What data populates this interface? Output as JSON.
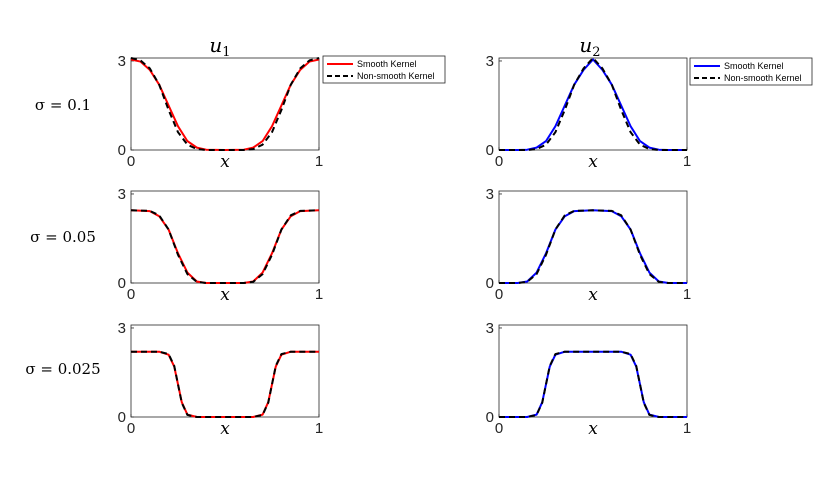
{
  "colors": {
    "u1_smooth": "#ff0000",
    "u2_smooth": "#0000ff",
    "non_smooth": "#000000",
    "axes": "#262626",
    "background": "#ffffff"
  },
  "legend": {
    "smooth_label": "Smooth Kernel",
    "nonsmooth_label": "Non-smooth Kernel"
  },
  "column_titles": {
    "u1": "u",
    "u1_sub": "1",
    "u2": "u",
    "u2_sub": "2"
  },
  "row_labels": [
    "σ = 0.1",
    "σ = 0.05",
    "σ = 0.025"
  ],
  "xlabel": "x",
  "chart_data": [
    {
      "type": "line",
      "component": "u_1",
      "sigma": 0.1,
      "xlim": [
        0,
        1
      ],
      "ylim": [
        0,
        3.1
      ],
      "xticks": [
        "0",
        "1"
      ],
      "yticks": [
        "0",
        "3"
      ],
      "series": [
        {
          "name": "Smooth Kernel",
          "x": [
            0,
            0.05,
            0.1,
            0.15,
            0.2,
            0.25,
            0.3,
            0.35,
            0.4,
            0.5,
            0.6,
            0.65,
            0.7,
            0.75,
            0.8,
            0.85,
            0.9,
            0.95,
            1
          ],
          "y": [
            3.05,
            2.98,
            2.7,
            2.2,
            1.5,
            0.8,
            0.3,
            0.08,
            0.01,
            0,
            0.01,
            0.08,
            0.3,
            0.8,
            1.5,
            2.2,
            2.7,
            2.98,
            3.05
          ]
        },
        {
          "name": "Non-smooth Kernel",
          "x": [
            0,
            0.05,
            0.1,
            0.15,
            0.2,
            0.25,
            0.3,
            0.35,
            0.4,
            0.5,
            0.6,
            0.65,
            0.7,
            0.75,
            0.8,
            0.85,
            0.9,
            0.95,
            1
          ],
          "y": [
            3.1,
            3.02,
            2.75,
            2.2,
            1.35,
            0.6,
            0.18,
            0.03,
            0,
            0,
            0,
            0.03,
            0.18,
            0.6,
            1.35,
            2.2,
            2.75,
            3.02,
            3.1
          ]
        }
      ]
    },
    {
      "type": "line",
      "component": "u_2",
      "sigma": 0.1,
      "xlim": [
        0,
        1
      ],
      "ylim": [
        0,
        3.1
      ],
      "xticks": [
        "0",
        "1"
      ],
      "yticks": [
        "0",
        "3"
      ],
      "series": [
        {
          "name": "Smooth Kernel",
          "x": [
            0,
            0.1,
            0.15,
            0.2,
            0.25,
            0.3,
            0.35,
            0.4,
            0.45,
            0.5,
            0.55,
            0.6,
            0.65,
            0.7,
            0.75,
            0.8,
            0.85,
            0.9,
            1
          ],
          "y": [
            0,
            0,
            0.01,
            0.08,
            0.3,
            0.8,
            1.5,
            2.2,
            2.7,
            3.05,
            2.7,
            2.2,
            1.5,
            0.8,
            0.3,
            0.08,
            0.01,
            0,
            0
          ]
        },
        {
          "name": "Non-smooth Kernel",
          "x": [
            0,
            0.1,
            0.15,
            0.2,
            0.25,
            0.3,
            0.35,
            0.4,
            0.45,
            0.5,
            0.55,
            0.6,
            0.65,
            0.7,
            0.75,
            0.8,
            0.85,
            0.9,
            1
          ],
          "y": [
            0,
            0,
            0,
            0.03,
            0.18,
            0.6,
            1.35,
            2.2,
            2.75,
            3.1,
            2.75,
            2.2,
            1.35,
            0.6,
            0.18,
            0.03,
            0,
            0,
            0
          ]
        }
      ]
    },
    {
      "type": "line",
      "component": "u_1",
      "sigma": 0.05,
      "xlim": [
        0,
        1
      ],
      "ylim": [
        0,
        3.1
      ],
      "xticks": [
        "0",
        "1"
      ],
      "yticks": [
        "0",
        "3"
      ],
      "series": [
        {
          "name": "Smooth Kernel",
          "x": [
            0,
            0.1,
            0.15,
            0.2,
            0.25,
            0.3,
            0.35,
            0.4,
            0.5,
            0.6,
            0.65,
            0.7,
            0.75,
            0.8,
            0.85,
            0.9,
            1
          ],
          "y": [
            2.45,
            2.42,
            2.25,
            1.8,
            1.0,
            0.35,
            0.05,
            0,
            0,
            0,
            0.05,
            0.35,
            1.0,
            1.8,
            2.25,
            2.42,
            2.45
          ]
        },
        {
          "name": "Non-smooth Kernel",
          "x": [
            0,
            0.1,
            0.15,
            0.2,
            0.25,
            0.3,
            0.35,
            0.4,
            0.5,
            0.6,
            0.65,
            0.7,
            0.75,
            0.8,
            0.85,
            0.9,
            1
          ],
          "y": [
            2.45,
            2.43,
            2.28,
            1.8,
            0.95,
            0.3,
            0.04,
            0,
            0,
            0,
            0.04,
            0.3,
            0.95,
            1.8,
            2.28,
            2.43,
            2.45
          ]
        }
      ]
    },
    {
      "type": "line",
      "component": "u_2",
      "sigma": 0.05,
      "xlim": [
        0,
        1
      ],
      "ylim": [
        0,
        3.1
      ],
      "xticks": [
        "0",
        "1"
      ],
      "yticks": [
        "0",
        "3"
      ],
      "series": [
        {
          "name": "Smooth Kernel",
          "x": [
            0,
            0.1,
            0.15,
            0.2,
            0.25,
            0.3,
            0.35,
            0.4,
            0.5,
            0.6,
            0.65,
            0.7,
            0.75,
            0.8,
            0.85,
            0.9,
            1
          ],
          "y": [
            0,
            0,
            0.05,
            0.35,
            1.0,
            1.8,
            2.25,
            2.42,
            2.45,
            2.42,
            2.25,
            1.8,
            1.0,
            0.35,
            0.05,
            0,
            0
          ]
        },
        {
          "name": "Non-smooth Kernel",
          "x": [
            0,
            0.1,
            0.15,
            0.2,
            0.25,
            0.3,
            0.35,
            0.4,
            0.5,
            0.6,
            0.65,
            0.7,
            0.75,
            0.8,
            0.85,
            0.9,
            1
          ],
          "y": [
            0,
            0,
            0.04,
            0.3,
            0.95,
            1.8,
            2.28,
            2.43,
            2.45,
            2.43,
            2.28,
            1.8,
            0.95,
            0.3,
            0.04,
            0,
            0
          ]
        }
      ]
    },
    {
      "type": "line",
      "component": "u_1",
      "sigma": 0.025,
      "xlim": [
        0,
        1
      ],
      "ylim": [
        0,
        3.1
      ],
      "xticks": [
        "0",
        "1"
      ],
      "yticks": [
        "0",
        "3"
      ],
      "series": [
        {
          "name": "Smooth Kernel",
          "x": [
            0,
            0.15,
            0.2,
            0.23,
            0.25,
            0.27,
            0.3,
            0.35,
            0.5,
            0.65,
            0.7,
            0.73,
            0.75,
            0.77,
            0.8,
            0.85,
            1
          ],
          "y": [
            2.2,
            2.2,
            2.1,
            1.7,
            1.1,
            0.5,
            0.08,
            0,
            0,
            0,
            0.08,
            0.5,
            1.1,
            1.7,
            2.1,
            2.2,
            2.2
          ]
        },
        {
          "name": "Non-smooth Kernel",
          "x": [
            0,
            0.15,
            0.2,
            0.23,
            0.25,
            0.27,
            0.3,
            0.35,
            0.5,
            0.65,
            0.7,
            0.73,
            0.75,
            0.77,
            0.8,
            0.85,
            1
          ],
          "y": [
            2.2,
            2.2,
            2.12,
            1.72,
            1.1,
            0.48,
            0.07,
            0,
            0,
            0,
            0.07,
            0.48,
            1.1,
            1.72,
            2.12,
            2.2,
            2.2
          ]
        }
      ]
    },
    {
      "type": "line",
      "component": "u_2",
      "sigma": 0.025,
      "xlim": [
        0,
        1
      ],
      "ylim": [
        0,
        3.1
      ],
      "xticks": [
        "0",
        "1"
      ],
      "yticks": [
        "0",
        "3"
      ],
      "series": [
        {
          "name": "Smooth Kernel",
          "x": [
            0,
            0.15,
            0.2,
            0.23,
            0.25,
            0.27,
            0.3,
            0.35,
            0.5,
            0.65,
            0.7,
            0.73,
            0.75,
            0.77,
            0.8,
            0.85,
            1
          ],
          "y": [
            0,
            0,
            0.08,
            0.5,
            1.1,
            1.7,
            2.1,
            2.2,
            2.2,
            2.2,
            2.1,
            1.7,
            1.1,
            0.5,
            0.08,
            0,
            0
          ]
        },
        {
          "name": "Non-smooth Kernel",
          "x": [
            0,
            0.15,
            0.2,
            0.23,
            0.25,
            0.27,
            0.3,
            0.35,
            0.5,
            0.65,
            0.7,
            0.73,
            0.75,
            0.77,
            0.8,
            0.85,
            1
          ],
          "y": [
            0,
            0,
            0.07,
            0.48,
            1.1,
            1.72,
            2.12,
            2.2,
            2.2,
            2.2,
            2.12,
            1.72,
            1.1,
            0.48,
            0.07,
            0,
            0
          ]
        }
      ]
    }
  ]
}
